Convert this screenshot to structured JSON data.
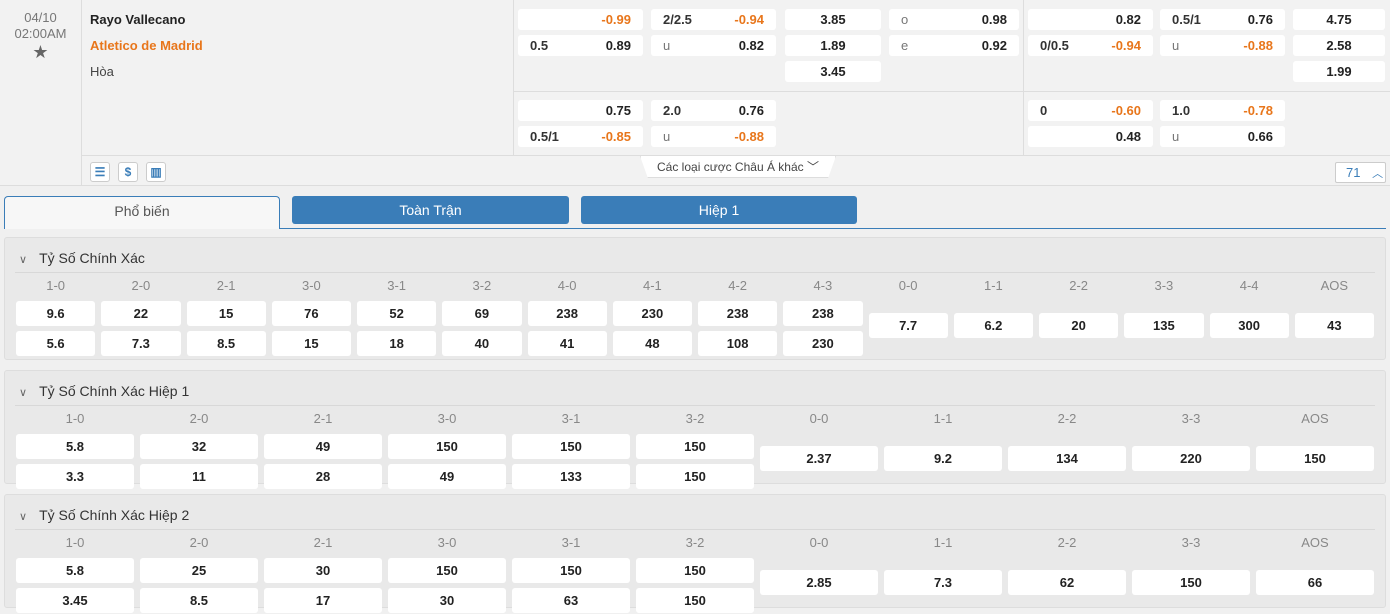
{
  "match": {
    "date": "04/10",
    "time": "02:00AM",
    "home": "Rayo Vallecano",
    "away": "Atletico de Madrid",
    "draw": "Hòa",
    "icons": [
      "favorite-star-icon"
    ]
  },
  "odds": {
    "ft_main": {
      "handicap": [
        {
          "line": "",
          "odds": "-0.99"
        },
        {
          "line": "0.5",
          "odds": "0.89"
        }
      ],
      "over_under": [
        {
          "line": "2/2.5",
          "odds": "-0.94"
        },
        {
          "line": "u",
          "odds": "0.82"
        }
      ],
      "1x2": [
        "3.85",
        "1.89",
        "3.45"
      ],
      "odd_even": [
        {
          "line": "o",
          "odds": "0.98"
        },
        {
          "line": "e",
          "odds": "0.92"
        }
      ]
    },
    "ft_alt": {
      "handicap": [
        {
          "line": "",
          "odds": "0.75"
        },
        {
          "line": "0.5/1",
          "odds": "-0.85"
        }
      ],
      "over_under": [
        {
          "line": "2.0",
          "odds": "0.76"
        },
        {
          "line": "u",
          "odds": "-0.88"
        }
      ]
    },
    "h1_main": {
      "handicap": [
        {
          "line": "",
          "odds": "0.82"
        },
        {
          "line": "0/0.5",
          "odds": "-0.94"
        }
      ],
      "over_under": [
        {
          "line": "0.5/1",
          "odds": "0.76"
        },
        {
          "line": "u",
          "odds": "-0.88"
        }
      ],
      "1x2": [
        "4.75",
        "2.58",
        "1.99"
      ]
    },
    "h1_alt": {
      "handicap": [
        {
          "line": "0",
          "odds": "-0.60"
        },
        {
          "line": "",
          "odds": "0.48"
        }
      ],
      "over_under": [
        {
          "line": "1.0",
          "odds": "-0.78"
        },
        {
          "line": "u",
          "odds": "0.66"
        }
      ]
    }
  },
  "footer": {
    "icons": [
      "layout-icon",
      "dollar-icon",
      "stats-icon"
    ],
    "more_bets": "Các loại cược Châu Á khác",
    "more_count": "71"
  },
  "tabs": [
    "Phổ biến",
    "Toàn Trận",
    "Hiệp 1"
  ],
  "colors": {
    "accent": "#3a7db8",
    "negative": "#e8761b"
  },
  "sections": [
    {
      "title": "Tỷ Số Chính Xác",
      "columns": [
        {
          "label": "1-0",
          "values": [
            "9.6",
            "5.6"
          ]
        },
        {
          "label": "2-0",
          "values": [
            "22",
            "7.3"
          ]
        },
        {
          "label": "2-1",
          "values": [
            "15",
            "8.5"
          ]
        },
        {
          "label": "3-0",
          "values": [
            "76",
            "15"
          ]
        },
        {
          "label": "3-1",
          "values": [
            "52",
            "18"
          ]
        },
        {
          "label": "3-2",
          "values": [
            "69",
            "40"
          ]
        },
        {
          "label": "4-0",
          "values": [
            "238",
            "41"
          ]
        },
        {
          "label": "4-1",
          "values": [
            "230",
            "48"
          ]
        },
        {
          "label": "4-2",
          "values": [
            "238",
            "108"
          ]
        },
        {
          "label": "4-3",
          "values": [
            "238",
            "230"
          ]
        },
        {
          "label": "0-0",
          "values": [
            "7.7"
          ]
        },
        {
          "label": "1-1",
          "values": [
            "6.2"
          ]
        },
        {
          "label": "2-2",
          "values": [
            "20"
          ]
        },
        {
          "label": "3-3",
          "values": [
            "135"
          ]
        },
        {
          "label": "4-4",
          "values": [
            "300"
          ]
        },
        {
          "label": "AOS",
          "values": [
            "43"
          ]
        }
      ]
    },
    {
      "title": "Tỷ Số Chính Xác Hiệp 1",
      "columns": [
        {
          "label": "1-0",
          "values": [
            "5.8",
            "3.3"
          ]
        },
        {
          "label": "2-0",
          "values": [
            "32",
            "11"
          ]
        },
        {
          "label": "2-1",
          "values": [
            "49",
            "28"
          ]
        },
        {
          "label": "3-0",
          "values": [
            "150",
            "49"
          ]
        },
        {
          "label": "3-1",
          "values": [
            "150",
            "133"
          ]
        },
        {
          "label": "3-2",
          "values": [
            "150",
            "150"
          ]
        },
        {
          "label": "0-0",
          "values": [
            "2.37"
          ]
        },
        {
          "label": "1-1",
          "values": [
            "9.2"
          ]
        },
        {
          "label": "2-2",
          "values": [
            "134"
          ]
        },
        {
          "label": "3-3",
          "values": [
            "220"
          ]
        },
        {
          "label": "AOS",
          "values": [
            "150"
          ]
        }
      ]
    },
    {
      "title": "Tỷ Số Chính Xác Hiệp 2",
      "columns": [
        {
          "label": "1-0",
          "values": [
            "5.8",
            "3.45"
          ]
        },
        {
          "label": "2-0",
          "values": [
            "25",
            "8.5"
          ]
        },
        {
          "label": "2-1",
          "values": [
            "30",
            "17"
          ]
        },
        {
          "label": "3-0",
          "values": [
            "150",
            "30"
          ]
        },
        {
          "label": "3-1",
          "values": [
            "150",
            "63"
          ]
        },
        {
          "label": "3-2",
          "values": [
            "150",
            "150"
          ]
        },
        {
          "label": "0-0",
          "values": [
            "2.85"
          ]
        },
        {
          "label": "1-1",
          "values": [
            "7.3"
          ]
        },
        {
          "label": "2-2",
          "values": [
            "62"
          ]
        },
        {
          "label": "3-3",
          "values": [
            "150"
          ]
        },
        {
          "label": "AOS",
          "values": [
            "66"
          ]
        }
      ]
    }
  ]
}
